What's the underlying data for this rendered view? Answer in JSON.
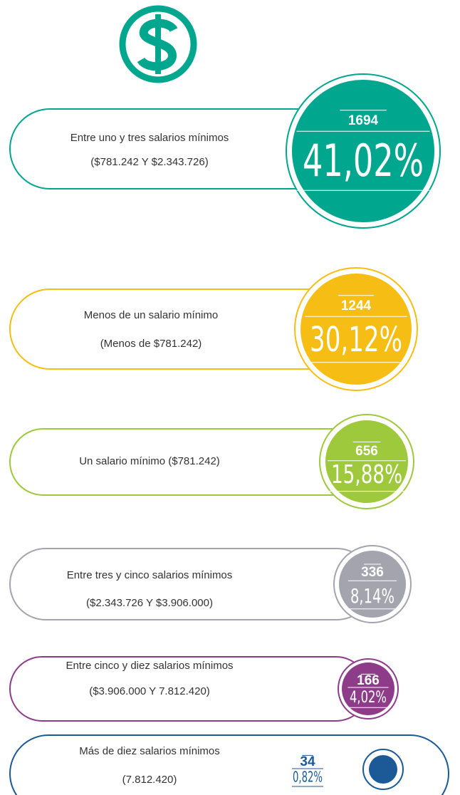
{
  "items": [
    {
      "label_lines": [
        "Entre uno y tres salarios mínimos",
        "($781.242 Y $2.343.726)"
      ],
      "count": "1694",
      "percent": "41,02%"
    },
    {
      "label_lines": [
        "Menos de un salario mínimo",
        "(Menos de $781.242)"
      ],
      "count": "1244",
      "percent": "30,12%"
    },
    {
      "label_lines": [
        "Un salario mínimo ($781.242)"
      ],
      "count": "656",
      "percent": "15,88%"
    },
    {
      "label_lines": [
        "Entre tres y cinco salarios mínimos",
        "($2.343.726 Y $3.906.000)"
      ],
      "count": "336",
      "percent": "8,14%"
    },
    {
      "label_lines": [
        "Entre cinco y diez salarios mínimos",
        "($3.906.000 Y 7.812.420)"
      ],
      "count": "166",
      "percent": "4,02%"
    },
    {
      "label_lines": [
        "Más de diez salarios mínimos",
        "(7.812.420)"
      ],
      "count": "34",
      "percent": "0,82%"
    }
  ]
}
